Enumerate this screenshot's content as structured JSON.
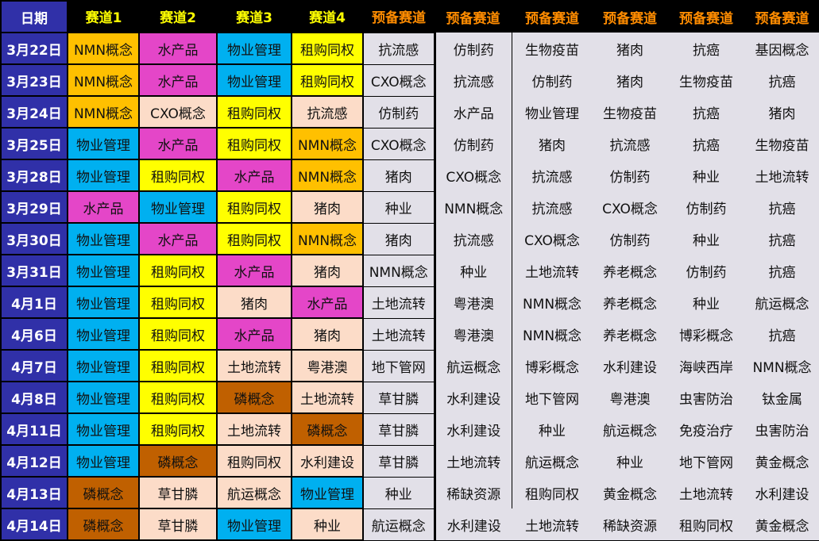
{
  "header": [
    "日期",
    "赛道1",
    "赛道2",
    "赛道3",
    "赛道4",
    "预备赛道",
    "预备赛道",
    "预备赛道",
    "预备赛道",
    "预备赛道",
    "预备赛道"
  ],
  "colors": {
    "o": "#ffc000",
    "m": "#e446c8",
    "c": "#00b0f0",
    "y": "#ffff00",
    "b": "#c06000",
    "p": "#fcdcc8"
  },
  "rows": [
    {
      "date": "3月22日",
      "cells": [
        "NMN概念",
        "水产品",
        "物业管理",
        "租购同权",
        "抗流感",
        "仿制药",
        "生物疫苗",
        "猪肉",
        "抗癌",
        "基因概念"
      ],
      "colors": [
        "o",
        "m",
        "c",
        "y"
      ]
    },
    {
      "date": "3月23日",
      "cells": [
        "NMN概念",
        "水产品",
        "物业管理",
        "租购同权",
        "CXO概念",
        "抗流感",
        "仿制药",
        "猪肉",
        "生物疫苗",
        "抗癌"
      ],
      "colors": [
        "o",
        "m",
        "c",
        "y"
      ]
    },
    {
      "date": "3月24日",
      "cells": [
        "NMN概念",
        "CXO概念",
        "租购同权",
        "抗流感",
        "仿制药",
        "水产品",
        "物业管理",
        "生物疫苗",
        "抗癌",
        "猪肉"
      ],
      "colors": [
        "o",
        "p",
        "y",
        "p"
      ]
    },
    {
      "date": "3月25日",
      "cells": [
        "物业管理",
        "水产品",
        "租购同权",
        "NMN概念",
        "CXO概念",
        "仿制药",
        "猪肉",
        "抗流感",
        "抗癌",
        "生物疫苗"
      ],
      "colors": [
        "c",
        "m",
        "y",
        "o"
      ]
    },
    {
      "date": "3月28日",
      "cells": [
        "物业管理",
        "租购同权",
        "水产品",
        "NMN概念",
        "猪肉",
        "CXO概念",
        "抗流感",
        "仿制药",
        "种业",
        "土地流转"
      ],
      "colors": [
        "c",
        "y",
        "m",
        "o"
      ]
    },
    {
      "date": "3月29日",
      "cells": [
        "水产品",
        "物业管理",
        "租购同权",
        "猪肉",
        "种业",
        "NMN概念",
        "抗流感",
        "CXO概念",
        "仿制药",
        "抗癌"
      ],
      "colors": [
        "m",
        "c",
        "y",
        "p"
      ]
    },
    {
      "date": "3月30日",
      "cells": [
        "物业管理",
        "水产品",
        "租购同权",
        "NMN概念",
        "猪肉",
        "抗流感",
        "CXO概念",
        "仿制药",
        "种业",
        "抗癌"
      ],
      "colors": [
        "c",
        "m",
        "y",
        "o"
      ]
    },
    {
      "date": "3月31日",
      "cells": [
        "物业管理",
        "租购同权",
        "水产品",
        "猪肉",
        "NMN概念",
        "种业",
        "土地流转",
        "养老概念",
        "仿制药",
        "抗癌"
      ],
      "colors": [
        "c",
        "y",
        "m",
        "p"
      ]
    },
    {
      "date": "4月1日",
      "cells": [
        "物业管理",
        "租购同权",
        "猪肉",
        "水产品",
        "土地流转",
        "粤港澳",
        "NMN概念",
        "养老概念",
        "种业",
        "航运概念"
      ],
      "colors": [
        "c",
        "y",
        "p",
        "m"
      ]
    },
    {
      "date": "4月6日",
      "cells": [
        "物业管理",
        "租购同权",
        "水产品",
        "猪肉",
        "土地流转",
        "粤港澳",
        "NMN概念",
        "养老概念",
        "博彩概念",
        "抗癌"
      ],
      "colors": [
        "c",
        "y",
        "m",
        "p"
      ]
    },
    {
      "date": "4月7日",
      "cells": [
        "物业管理",
        "租购同权",
        "土地流转",
        "粤港澳",
        "地下管网",
        "航运概念",
        "博彩概念",
        "水利建设",
        "海峡西岸",
        "NMN概念"
      ],
      "colors": [
        "c",
        "y",
        "p",
        "p"
      ]
    },
    {
      "date": "4月8日",
      "cells": [
        "物业管理",
        "租购同权",
        "磷概念",
        "土地流转",
        "草甘膦",
        "水利建设",
        "地下管网",
        "粤港澳",
        "虫害防治",
        "钛金属"
      ],
      "colors": [
        "c",
        "y",
        "b",
        "p"
      ]
    },
    {
      "date": "4月11日",
      "cells": [
        "物业管理",
        "租购同权",
        "土地流转",
        "磷概念",
        "草甘膦",
        "水利建设",
        "种业",
        "航运概念",
        "免疫治疗",
        "虫害防治"
      ],
      "colors": [
        "c",
        "y",
        "p",
        "b"
      ]
    },
    {
      "date": "4月12日",
      "cells": [
        "物业管理",
        "磷概念",
        "租购同权",
        "水利建设",
        "草甘膦",
        "土地流转",
        "航运概念",
        "种业",
        "地下管网",
        "黄金概念"
      ],
      "colors": [
        "c",
        "b",
        "p",
        "p"
      ]
    },
    {
      "date": "4月13日",
      "cells": [
        "磷概念",
        "草甘膦",
        "航运概念",
        "物业管理",
        "种业",
        "稀缺资源",
        "租购同权",
        "黄金概念",
        "土地流转",
        "水利建设"
      ],
      "colors": [
        "b",
        "p",
        "p",
        "c"
      ]
    },
    {
      "date": "4月14日",
      "cells": [
        "磷概念",
        "草甘膦",
        "物业管理",
        "种业",
        "航运概念",
        "水利建设",
        "土地流转",
        "稀缺资源",
        "租购同权",
        "黄金概念"
      ],
      "colors": [
        "b",
        "p",
        "c",
        "p"
      ]
    }
  ]
}
